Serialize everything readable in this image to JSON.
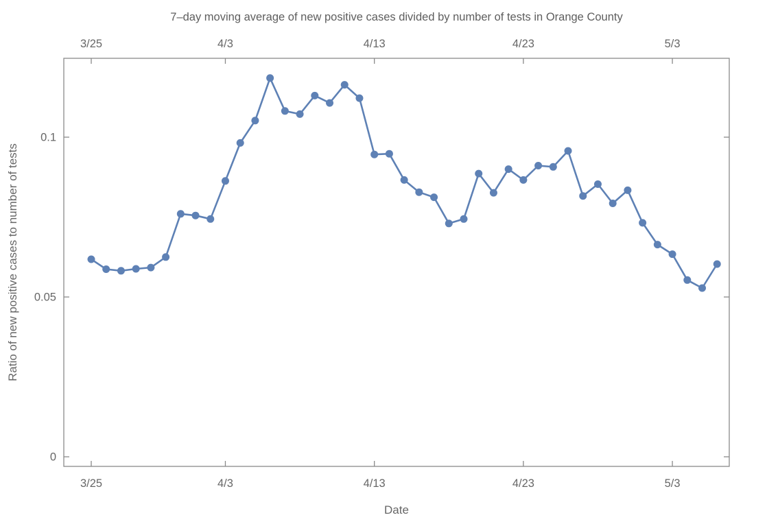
{
  "chart_data": {
    "type": "line",
    "title": "7–day moving average of new positive cases divided by number of tests in Orange County",
    "xlabel": "Date",
    "ylabel": "Ratio of new positive cases to number of tests",
    "x": [
      "3/25",
      "3/26",
      "3/27",
      "3/28",
      "3/29",
      "3/30",
      "3/31",
      "4/1",
      "4/2",
      "4/3",
      "4/4",
      "4/5",
      "4/6",
      "4/7",
      "4/8",
      "4/9",
      "4/10",
      "4/11",
      "4/12",
      "4/13",
      "4/14",
      "4/15",
      "4/16",
      "4/17",
      "4/18",
      "4/19",
      "4/20",
      "4/21",
      "4/22",
      "4/23",
      "4/24",
      "4/25",
      "4/26",
      "4/27",
      "4/28",
      "4/29",
      "4/30",
      "5/1",
      "5/2",
      "5/3",
      "5/4",
      "5/5",
      "5/6"
    ],
    "values": [
      0.0618,
      0.0587,
      0.0582,
      0.0588,
      0.0592,
      0.0625,
      0.076,
      0.0755,
      0.0744,
      0.0863,
      0.0982,
      0.1052,
      0.1185,
      0.1082,
      0.1072,
      0.113,
      0.1107,
      0.1164,
      0.1122,
      0.0946,
      0.0948,
      0.0866,
      0.0828,
      0.0812,
      0.073,
      0.0744,
      0.0886,
      0.0826,
      0.09,
      0.0866,
      0.0911,
      0.0907,
      0.0957,
      0.0816,
      0.0853,
      0.0793,
      0.0834,
      0.0732,
      0.0664,
      0.0634,
      0.0553,
      0.0528,
      0.0603
    ],
    "x_tick_labels": [
      "3/25",
      "4/3",
      "4/13",
      "4/23",
      "5/3"
    ],
    "x_tick_indices": [
      0,
      9,
      19,
      29,
      39
    ],
    "y_tick_values": [
      0,
      0.05,
      0.1
    ],
    "y_tick_labels": [
      "0",
      "0.05",
      "0.1"
    ],
    "ylim": [
      -0.003,
      0.1247
    ],
    "grid": false,
    "legend_position": "none",
    "marker": "circle",
    "colors": {
      "series": "#5E81B5",
      "frame": "#8a8a8a",
      "tick_label": "#676767",
      "axis_label": "#676767",
      "title": "#5e5e5e",
      "background": "#ffffff"
    }
  }
}
